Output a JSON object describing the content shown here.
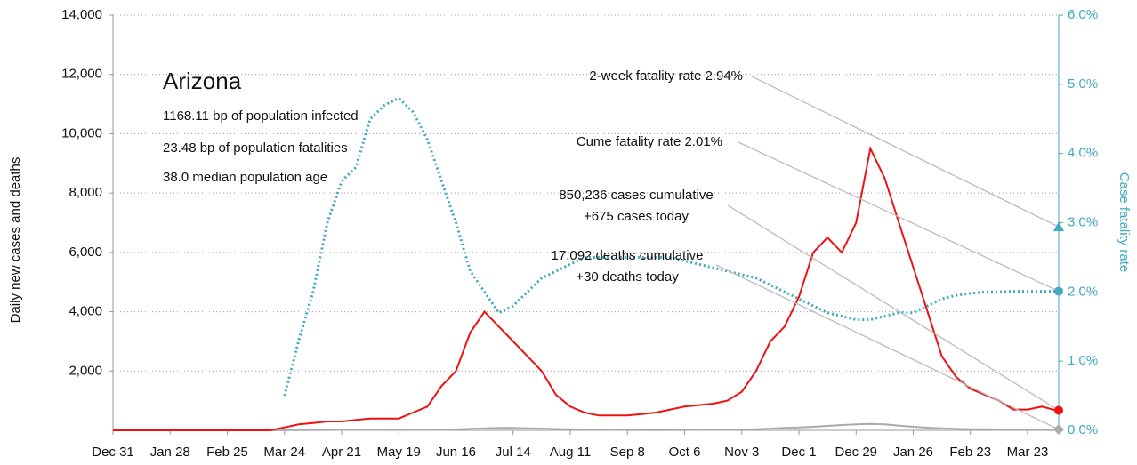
{
  "chart_data": {
    "type": "line",
    "title": "Arizona",
    "info": [
      "1168.11 bp of population infected",
      "23.48 bp of population fatalities",
      "38.0 median population age"
    ],
    "ylabel": "Daily new cases and deaths",
    "y2label": "Case fatality rate",
    "categories": [
      "Dec 31",
      null,
      null,
      null,
      "Jan 28",
      null,
      null,
      null,
      "Feb 25",
      null,
      null,
      null,
      "Mar 24",
      null,
      null,
      null,
      "Apr 21",
      null,
      null,
      null,
      "May 19",
      null,
      null,
      null,
      "Jun 16",
      null,
      null,
      null,
      "Jul 14",
      null,
      null,
      null,
      "Aug 11",
      null,
      null,
      null,
      "Sep 8",
      null,
      null,
      null,
      "Oct 6",
      null,
      null,
      null,
      "Nov 3",
      null,
      null,
      null,
      "Dec 1",
      null,
      null,
      null,
      "Dec 29",
      null,
      null,
      null,
      "Jan 26",
      null,
      null,
      null,
      "Feb 23",
      null,
      null,
      null,
      "Mar 23",
      null,
      null
    ],
    "series": [
      {
        "name": "Daily new cases",
        "color": "#ee1111",
        "values": [
          0,
          0,
          0,
          0,
          0,
          0,
          0,
          0,
          0,
          0,
          0,
          0,
          100,
          200,
          250,
          300,
          300,
          350,
          400,
          400,
          400,
          600,
          800,
          1500,
          2000,
          3300,
          4000,
          3500,
          3000,
          2500,
          2000,
          1200,
          800,
          600,
          500,
          500,
          500,
          550,
          600,
          700,
          800,
          850,
          900,
          1000,
          1300,
          2000,
          3000,
          3500,
          4500,
          6000,
          6500,
          6000,
          7000,
          9500,
          8500,
          7000,
          5500,
          4000,
          2500,
          1800,
          1400,
          1200,
          1000,
          700,
          700,
          800,
          675
        ]
      },
      {
        "name": "Daily deaths",
        "color": "#aaaaaa",
        "values": [
          0,
          0,
          0,
          0,
          0,
          0,
          0,
          0,
          0,
          0,
          0,
          0,
          5,
          8,
          10,
          12,
          15,
          15,
          15,
          15,
          15,
          15,
          15,
          20,
          30,
          50,
          70,
          80,
          80,
          70,
          60,
          45,
          35,
          25,
          20,
          15,
          12,
          10,
          10,
          10,
          12,
          15,
          20,
          25,
          30,
          40,
          60,
          80,
          100,
          120,
          150,
          180,
          200,
          220,
          200,
          160,
          120,
          90,
          70,
          50,
          40,
          35,
          30,
          30,
          30,
          30,
          30
        ]
      },
      {
        "name": "Case fatality rate",
        "color": "#3fa9c0",
        "axis": "y2",
        "values": [
          null,
          null,
          null,
          null,
          null,
          null,
          null,
          null,
          null,
          null,
          null,
          null,
          0.5,
          1.3,
          2.0,
          3.0,
          3.6,
          3.8,
          4.5,
          4.7,
          4.8,
          4.6,
          4.2,
          3.6,
          3.0,
          2.3,
          2.0,
          1.7,
          1.8,
          2.0,
          2.2,
          2.3,
          2.4,
          2.5,
          2.5,
          2.5,
          2.5,
          2.5,
          2.5,
          2.5,
          2.45,
          2.4,
          2.35,
          2.3,
          2.25,
          2.2,
          2.1,
          2.0,
          1.9,
          1.8,
          1.7,
          1.65,
          1.6,
          1.6,
          1.65,
          1.7,
          1.7,
          1.8,
          1.9,
          1.95,
          1.98,
          2.0,
          2.0,
          2.01,
          2.01,
          2.01,
          2.01
        ]
      }
    ],
    "two_week_rate": 2.94,
    "annotations": [
      [
        "2-week fatality rate 2.94%"
      ],
      [
        "Cume fatality rate 2.01%"
      ],
      [
        "850,236 cases cumulative",
        "+675 cases today"
      ],
      [
        "17,092 deaths cumulative",
        "+30 deaths today"
      ]
    ],
    "ylim": [
      0,
      14000
    ],
    "yticks": [
      {
        "value": 2000,
        "label": "2,000"
      },
      {
        "value": 4000,
        "label": "4,000"
      },
      {
        "value": 6000,
        "label": "6,000"
      },
      {
        "value": 8000,
        "label": "8,000"
      },
      {
        "value": 10000,
        "label": "10,000"
      },
      {
        "value": 12000,
        "label": "12,000"
      },
      {
        "value": 14000,
        "label": "14,000"
      }
    ],
    "y2lim": [
      0,
      6
    ],
    "y2ticks": [
      {
        "value": 0,
        "label": "0.0%"
      },
      {
        "value": 1,
        "label": "1.0%"
      },
      {
        "value": 2,
        "label": "2.0%"
      },
      {
        "value": 3,
        "label": "3.0%"
      },
      {
        "value": 4,
        "label": "4.0%"
      },
      {
        "value": 5,
        "label": "5.0%"
      },
      {
        "value": 6,
        "label": "6.0%"
      }
    ],
    "grid": true
  }
}
